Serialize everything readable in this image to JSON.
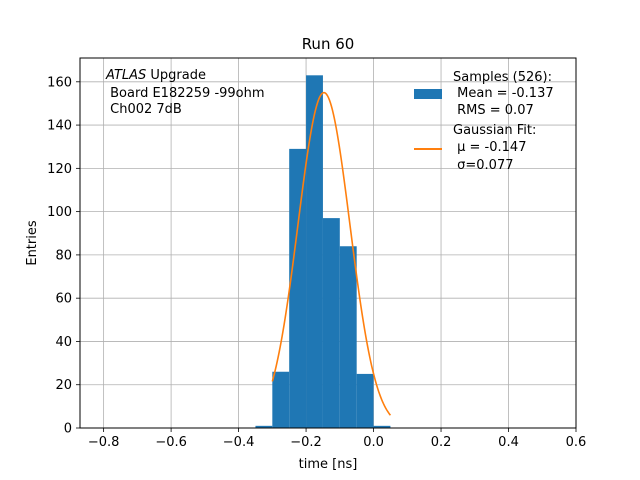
{
  "chart_data": {
    "type": "bar",
    "title": "Run 60",
    "xlabel": "time [ns]",
    "ylabel": "Entries",
    "xlim": [
      -0.87,
      0.6
    ],
    "ylim": [
      0,
      171
    ],
    "xticks": [
      -0.8,
      -0.6,
      -0.4,
      -0.2,
      0.0,
      0.2,
      0.4,
      0.6
    ],
    "xtick_labels": [
      "−0.8",
      "−0.6",
      "−0.4",
      "−0.2",
      "0.0",
      "0.2",
      "0.4",
      "0.6"
    ],
    "yticks": [
      0,
      20,
      40,
      60,
      80,
      100,
      120,
      140,
      160
    ],
    "yticks_labels": [
      "0",
      "20",
      "40",
      "60",
      "80",
      "100",
      "120",
      "140",
      "160"
    ],
    "grid": true,
    "bar_color": "#1f77b4",
    "fit_color": "#ff7f0e",
    "histogram": {
      "name": "Samples (526):",
      "bin_edges": [
        -0.35,
        -0.3,
        -0.25,
        -0.2,
        -0.15,
        -0.1,
        -0.05,
        0.0,
        0.05,
        0.1
      ],
      "counts": [
        1,
        26,
        129,
        163,
        97,
        84,
        25,
        1,
        0
      ]
    },
    "fit": {
      "name": "Gaussian Fit:",
      "mu": -0.147,
      "sigma": 0.077,
      "amplitude": 155,
      "x_range": [
        -0.3,
        0.05
      ]
    },
    "annotation": {
      "italic": "ATLAS",
      "rest": " Upgrade",
      "line2": " Board E182259 -99ohm",
      "line3": " Ch002 7dB"
    },
    "legend": {
      "position": "top-right",
      "hist_title": "Samples (526):",
      "hist_mean": " Mean = -0.137",
      "hist_rms": " RMS = 0.07",
      "fit_title": "Gaussian Fit:",
      "fit_mu": " μ = -0.147",
      "fit_sigma": " σ=0.077"
    }
  }
}
